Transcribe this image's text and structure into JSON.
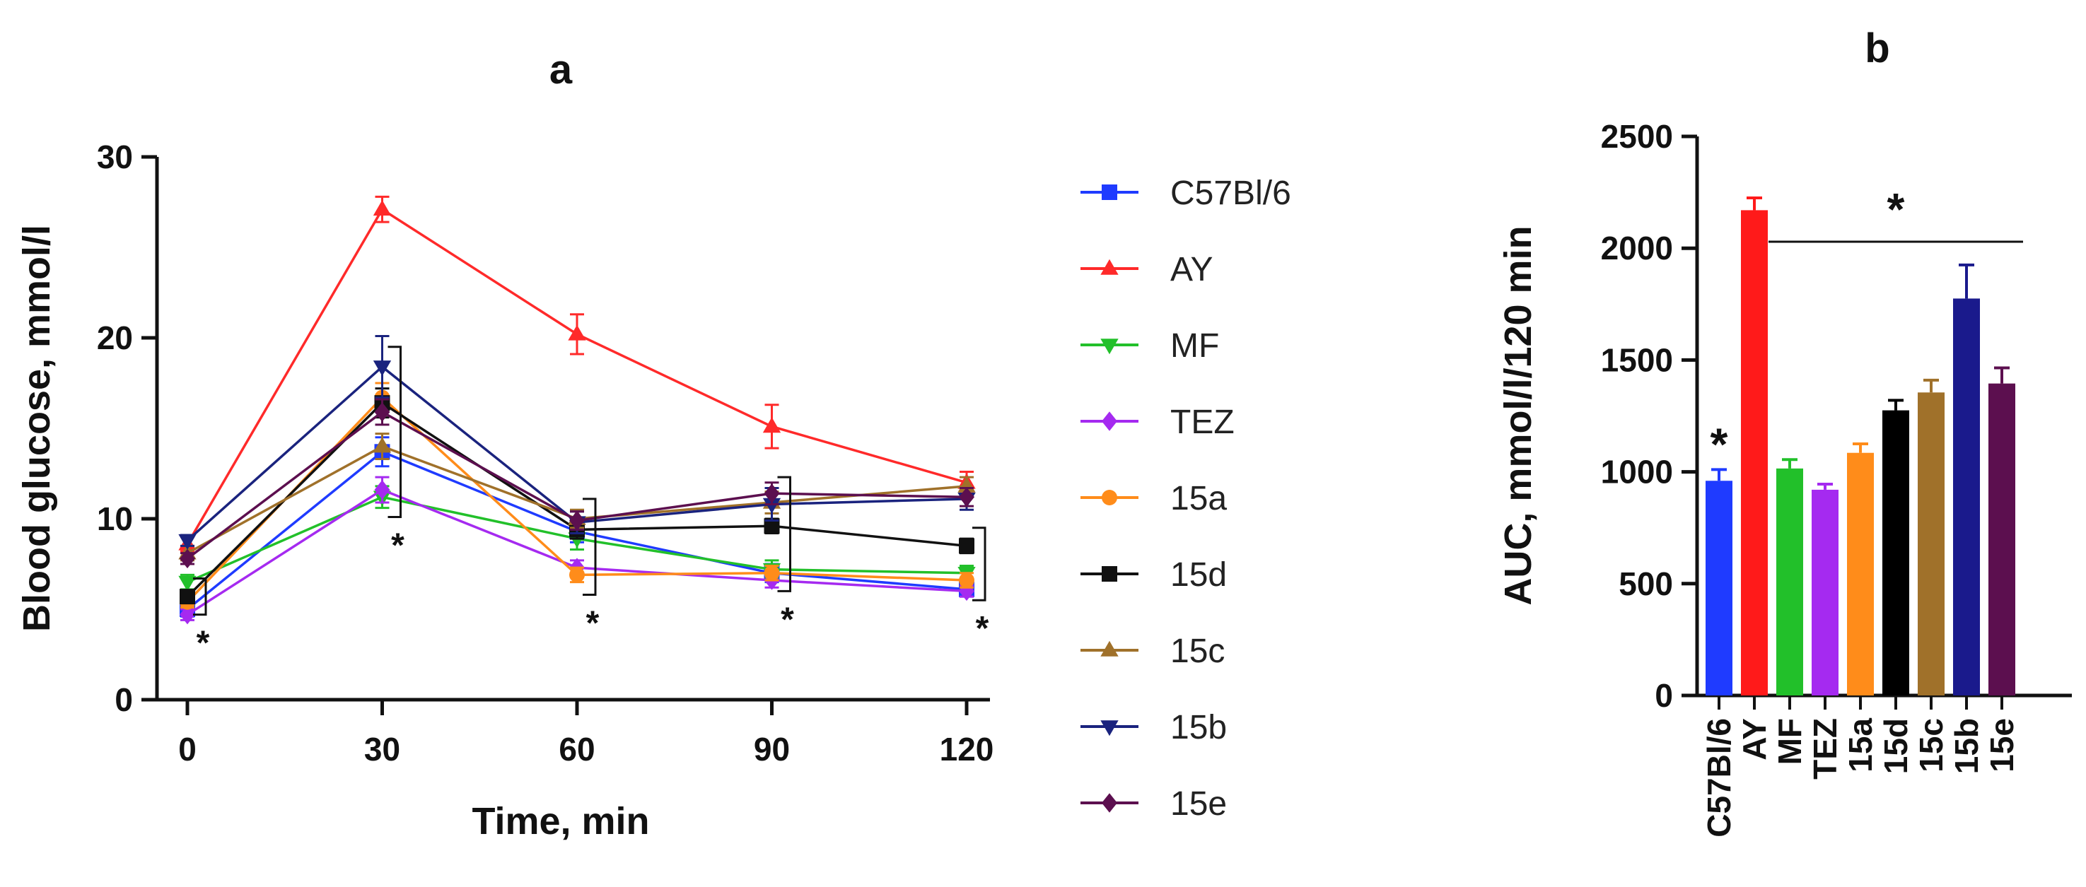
{
  "chart_data": [
    {
      "panel": "a",
      "type": "line",
      "title": "a",
      "xlabel": "Time, min",
      "ylabel": "Blood glucose, mmol/l",
      "x": [
        0,
        30,
        60,
        90,
        120
      ],
      "x_ticks": [
        "0",
        "30",
        "60",
        "90",
        "120"
      ],
      "ylim": [
        0,
        30
      ],
      "y_ticks": [
        "0",
        "10",
        "20",
        "30"
      ],
      "legend_position": "right",
      "series": [
        {
          "name": "C57Bl/6",
          "color": "#1f3bff",
          "marker": "square",
          "values": [
            5.0,
            13.7,
            9.3,
            7.0,
            6.1
          ],
          "errors": [
            0.4,
            0.8,
            0.6,
            0.5,
            0.4
          ]
        },
        {
          "name": "AY",
          "color": "#ff2a2a",
          "marker": "triangle-up",
          "values": [
            8.6,
            27.1,
            20.2,
            15.1,
            12.0
          ],
          "errors": [
            0.4,
            0.7,
            1.1,
            1.2,
            0.6
          ]
        },
        {
          "name": "MF",
          "color": "#22c02a",
          "marker": "triangle-down",
          "values": [
            6.5,
            11.2,
            8.9,
            7.2,
            7.0
          ],
          "errors": [
            0.4,
            0.6,
            0.6,
            0.5,
            0.4
          ]
        },
        {
          "name": "TEZ",
          "color": "#a52af0",
          "marker": "diamond",
          "values": [
            4.7,
            11.6,
            7.3,
            6.6,
            6.0
          ],
          "errors": [
            0.3,
            0.7,
            0.4,
            0.4,
            0.3
          ]
        },
        {
          "name": "15a",
          "color": "#ff8c1a",
          "marker": "circle",
          "values": [
            5.4,
            16.7,
            6.9,
            7.0,
            6.6
          ],
          "errors": [
            0.3,
            0.8,
            0.4,
            0.4,
            0.4
          ]
        },
        {
          "name": "15d",
          "color": "#111111",
          "marker": "square",
          "values": [
            5.7,
            16.4,
            9.4,
            9.6,
            8.5
          ],
          "errors": [
            0.3,
            0.8,
            0.5,
            0.4,
            0.4
          ]
        },
        {
          "name": "15c",
          "color": "#a0712a",
          "marker": "triangle-up",
          "values": [
            8.1,
            14.0,
            10.0,
            10.9,
            11.8
          ],
          "errors": [
            0.4,
            0.7,
            0.5,
            0.6,
            0.5
          ]
        },
        {
          "name": "15b",
          "color": "#1a237e",
          "marker": "triangle-down",
          "values": [
            8.8,
            18.4,
            9.8,
            10.8,
            11.1
          ],
          "errors": [
            0.3,
            1.7,
            0.6,
            0.9,
            0.6
          ]
        },
        {
          "name": "15e",
          "color": "#5c0f4f",
          "marker": "diamond",
          "values": [
            7.8,
            15.9,
            9.9,
            11.4,
            11.2
          ],
          "errors": [
            0.3,
            0.7,
            0.5,
            0.6,
            0.5
          ]
        }
      ],
      "significance": [
        {
          "x": 0,
          "label": "*",
          "range": [
            4.7,
            6.7
          ]
        },
        {
          "x": 30,
          "label": "*",
          "range": [
            10.1,
            19.5
          ]
        },
        {
          "x": 60,
          "label": "*",
          "range": [
            5.8,
            11.1
          ]
        },
        {
          "x": 90,
          "label": "*",
          "range": [
            6.0,
            12.3
          ]
        },
        {
          "x": 120,
          "label": "*",
          "range": [
            5.5,
            9.5
          ]
        }
      ]
    },
    {
      "panel": "b",
      "type": "bar",
      "title": "b",
      "xlabel": "",
      "ylabel": "AUC, mmol/l/120 min",
      "categories": [
        "C57Bl/6",
        "AY",
        "MF",
        "TEZ",
        "15a",
        "15d",
        "15c",
        "15b",
        "15e"
      ],
      "values": [
        960,
        2170,
        1015,
        920,
        1085,
        1275,
        1355,
        1775,
        1395
      ],
      "errors": [
        50,
        55,
        40,
        25,
        40,
        45,
        55,
        150,
        70
      ],
      "colors": [
        "#1f3bff",
        "#ff1a1a",
        "#22c02a",
        "#a52af0",
        "#ff8c1a",
        "#000000",
        "#a0712a",
        "#1a1a8c",
        "#5c0f4f"
      ],
      "ylim": [
        0,
        2500
      ],
      "y_ticks": [
        "0",
        "500",
        "1000",
        "1500",
        "2000",
        "2500"
      ],
      "significance": [
        {
          "category": "C57Bl/6",
          "label": "*"
        },
        {
          "from": "MF",
          "to": "15e",
          "label": "*"
        }
      ]
    }
  ]
}
